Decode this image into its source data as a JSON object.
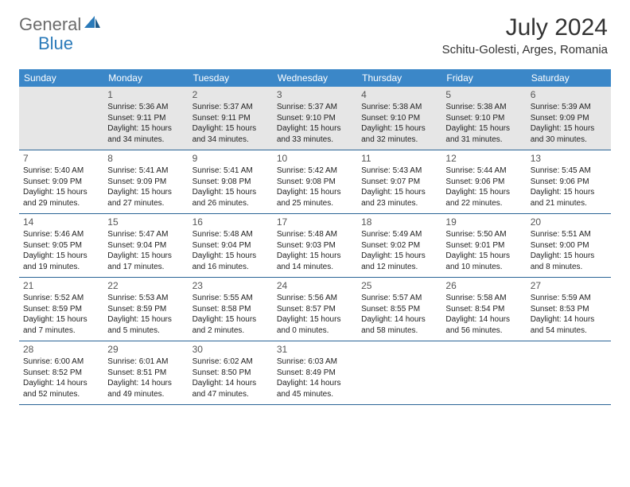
{
  "logo": {
    "text_general": "General",
    "text_blue": "Blue"
  },
  "title": {
    "month": "July 2024",
    "location": "Schitu-Golesti, Arges, Romania"
  },
  "colors": {
    "header_bg": "#3b87c8",
    "header_text": "#ffffff",
    "row_divider": "#2a6496",
    "first_row_bg": "#e6e6e6",
    "logo_gray": "#6b6b6b",
    "logo_blue": "#2a7ab9",
    "body_text": "#222222"
  },
  "day_headers": [
    "Sunday",
    "Monday",
    "Tuesday",
    "Wednesday",
    "Thursday",
    "Friday",
    "Saturday"
  ],
  "weeks": [
    [
      null,
      {
        "n": "1",
        "sr": "5:36 AM",
        "ss": "9:11 PM",
        "dl": "15 hours and 34 minutes."
      },
      {
        "n": "2",
        "sr": "5:37 AM",
        "ss": "9:11 PM",
        "dl": "15 hours and 34 minutes."
      },
      {
        "n": "3",
        "sr": "5:37 AM",
        "ss": "9:10 PM",
        "dl": "15 hours and 33 minutes."
      },
      {
        "n": "4",
        "sr": "5:38 AM",
        "ss": "9:10 PM",
        "dl": "15 hours and 32 minutes."
      },
      {
        "n": "5",
        "sr": "5:38 AM",
        "ss": "9:10 PM",
        "dl": "15 hours and 31 minutes."
      },
      {
        "n": "6",
        "sr": "5:39 AM",
        "ss": "9:09 PM",
        "dl": "15 hours and 30 minutes."
      }
    ],
    [
      {
        "n": "7",
        "sr": "5:40 AM",
        "ss": "9:09 PM",
        "dl": "15 hours and 29 minutes."
      },
      {
        "n": "8",
        "sr": "5:41 AM",
        "ss": "9:09 PM",
        "dl": "15 hours and 27 minutes."
      },
      {
        "n": "9",
        "sr": "5:41 AM",
        "ss": "9:08 PM",
        "dl": "15 hours and 26 minutes."
      },
      {
        "n": "10",
        "sr": "5:42 AM",
        "ss": "9:08 PM",
        "dl": "15 hours and 25 minutes."
      },
      {
        "n": "11",
        "sr": "5:43 AM",
        "ss": "9:07 PM",
        "dl": "15 hours and 23 minutes."
      },
      {
        "n": "12",
        "sr": "5:44 AM",
        "ss": "9:06 PM",
        "dl": "15 hours and 22 minutes."
      },
      {
        "n": "13",
        "sr": "5:45 AM",
        "ss": "9:06 PM",
        "dl": "15 hours and 21 minutes."
      }
    ],
    [
      {
        "n": "14",
        "sr": "5:46 AM",
        "ss": "9:05 PM",
        "dl": "15 hours and 19 minutes."
      },
      {
        "n": "15",
        "sr": "5:47 AM",
        "ss": "9:04 PM",
        "dl": "15 hours and 17 minutes."
      },
      {
        "n": "16",
        "sr": "5:48 AM",
        "ss": "9:04 PM",
        "dl": "15 hours and 16 minutes."
      },
      {
        "n": "17",
        "sr": "5:48 AM",
        "ss": "9:03 PM",
        "dl": "15 hours and 14 minutes."
      },
      {
        "n": "18",
        "sr": "5:49 AM",
        "ss": "9:02 PM",
        "dl": "15 hours and 12 minutes."
      },
      {
        "n": "19",
        "sr": "5:50 AM",
        "ss": "9:01 PM",
        "dl": "15 hours and 10 minutes."
      },
      {
        "n": "20",
        "sr": "5:51 AM",
        "ss": "9:00 PM",
        "dl": "15 hours and 8 minutes."
      }
    ],
    [
      {
        "n": "21",
        "sr": "5:52 AM",
        "ss": "8:59 PM",
        "dl": "15 hours and 7 minutes."
      },
      {
        "n": "22",
        "sr": "5:53 AM",
        "ss": "8:59 PM",
        "dl": "15 hours and 5 minutes."
      },
      {
        "n": "23",
        "sr": "5:55 AM",
        "ss": "8:58 PM",
        "dl": "15 hours and 2 minutes."
      },
      {
        "n": "24",
        "sr": "5:56 AM",
        "ss": "8:57 PM",
        "dl": "15 hours and 0 minutes."
      },
      {
        "n": "25",
        "sr": "5:57 AM",
        "ss": "8:55 PM",
        "dl": "14 hours and 58 minutes."
      },
      {
        "n": "26",
        "sr": "5:58 AM",
        "ss": "8:54 PM",
        "dl": "14 hours and 56 minutes."
      },
      {
        "n": "27",
        "sr": "5:59 AM",
        "ss": "8:53 PM",
        "dl": "14 hours and 54 minutes."
      }
    ],
    [
      {
        "n": "28",
        "sr": "6:00 AM",
        "ss": "8:52 PM",
        "dl": "14 hours and 52 minutes."
      },
      {
        "n": "29",
        "sr": "6:01 AM",
        "ss": "8:51 PM",
        "dl": "14 hours and 49 minutes."
      },
      {
        "n": "30",
        "sr": "6:02 AM",
        "ss": "8:50 PM",
        "dl": "14 hours and 47 minutes."
      },
      {
        "n": "31",
        "sr": "6:03 AM",
        "ss": "8:49 PM",
        "dl": "14 hours and 45 minutes."
      },
      null,
      null,
      null
    ]
  ],
  "labels": {
    "sunrise": "Sunrise:",
    "sunset": "Sunset:",
    "daylight": "Daylight:"
  }
}
